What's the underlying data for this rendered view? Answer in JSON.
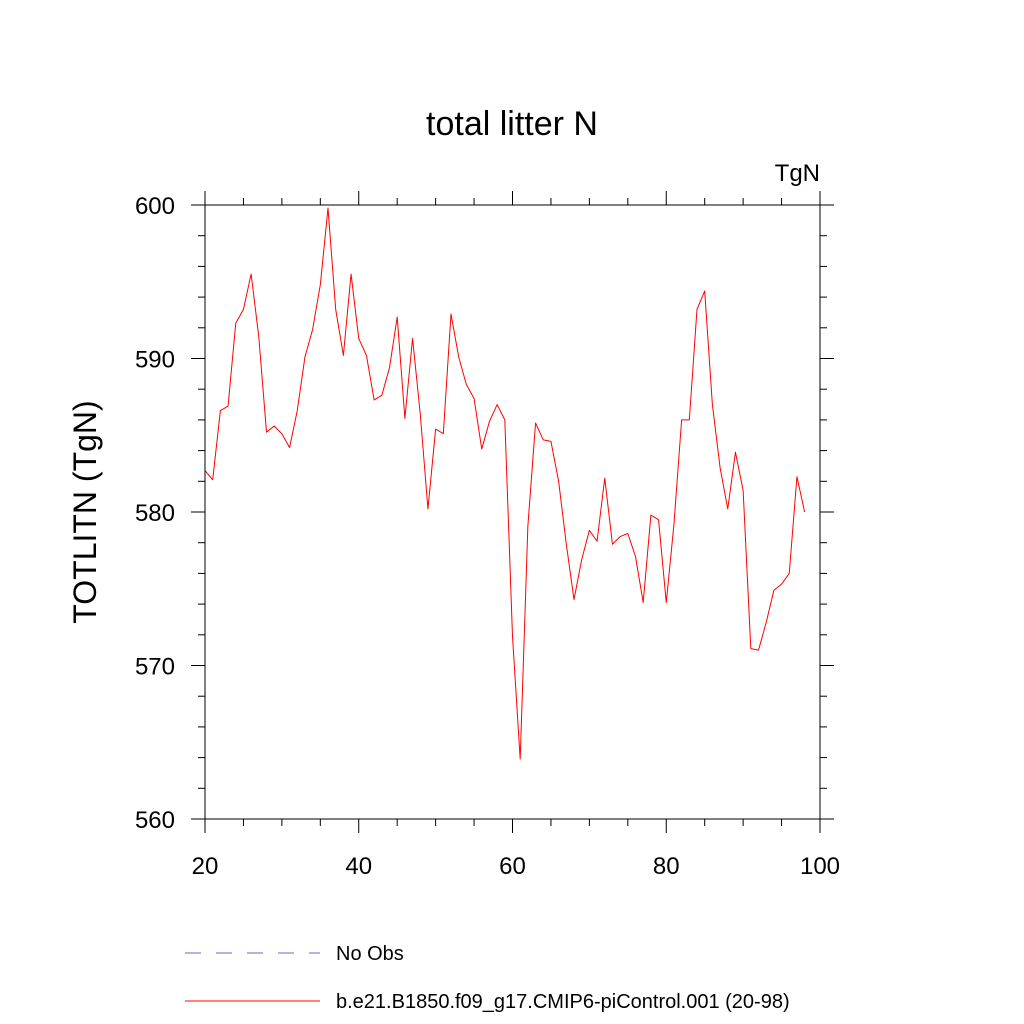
{
  "chart_data": {
    "type": "line",
    "title": "total litter N",
    "units_label": "TgN",
    "xlabel": "",
    "ylabel": "TOTLITN  (TgN)",
    "xlim": [
      20,
      100
    ],
    "ylim": [
      560,
      600
    ],
    "xticks": [
      20,
      40,
      60,
      80,
      100
    ],
    "yticks": [
      560,
      570,
      580,
      590,
      600
    ],
    "x_minor_step": 5,
    "y_minor_step": 2,
    "grid": false,
    "legend_position": "bottom-left",
    "legend": [
      {
        "label": "No Obs",
        "color": "#6666cc",
        "style": "dashed"
      },
      {
        "label": "b.e21.B1850.f09_g17.CMIP6-piControl.001 (20-98)",
        "color": "#ff0000",
        "style": "solid"
      }
    ],
    "series": [
      {
        "name": "b.e21.B1850.f09_g17.CMIP6-piControl.001 (20-98)",
        "color": "#ff0000",
        "x": [
          20,
          21,
          22,
          23,
          24,
          25,
          26,
          27,
          28,
          29,
          30,
          31,
          32,
          33,
          34,
          35,
          36,
          37,
          38,
          39,
          40,
          41,
          42,
          43,
          44,
          45,
          46,
          47,
          48,
          49,
          50,
          51,
          52,
          53,
          54,
          55,
          56,
          57,
          58,
          59,
          60,
          61,
          62,
          63,
          64,
          65,
          66,
          67,
          68,
          69,
          70,
          71,
          72,
          73,
          74,
          75,
          76,
          77,
          78,
          79,
          80,
          81,
          82,
          83,
          84,
          85,
          86,
          87,
          88,
          89,
          90,
          91,
          92,
          93,
          94,
          95,
          96,
          97,
          98
        ],
        "y": [
          582.7,
          582.1,
          586.6,
          586.9,
          592.3,
          593.2,
          595.5,
          591.4,
          585.2,
          585.6,
          585.1,
          584.2,
          586.6,
          590.1,
          591.9,
          594.8,
          599.8,
          593.2,
          590.2,
          595.5,
          591.3,
          590.2,
          587.3,
          587.6,
          589.4,
          592.7,
          586.1,
          591.3,
          586.4,
          580.2,
          585.4,
          585.1,
          592.9,
          590.1,
          588.3,
          587.4,
          584.1,
          585.9,
          587.0,
          586.0,
          571.9,
          563.9,
          579.1,
          585.8,
          584.7,
          584.6,
          582.0,
          577.9,
          574.3,
          576.9,
          578.8,
          578.1,
          582.2,
          577.9,
          578.4,
          578.6,
          577.1,
          574.1,
          579.8,
          579.5,
          574.1,
          579.2,
          586.0,
          586.0,
          593.2,
          594.4,
          587.0,
          582.9,
          580.2,
          583.9,
          581.4,
          571.1,
          571.0,
          572.8,
          574.9,
          575.3,
          576.0,
          582.3,
          580.0
        ]
      }
    ]
  }
}
